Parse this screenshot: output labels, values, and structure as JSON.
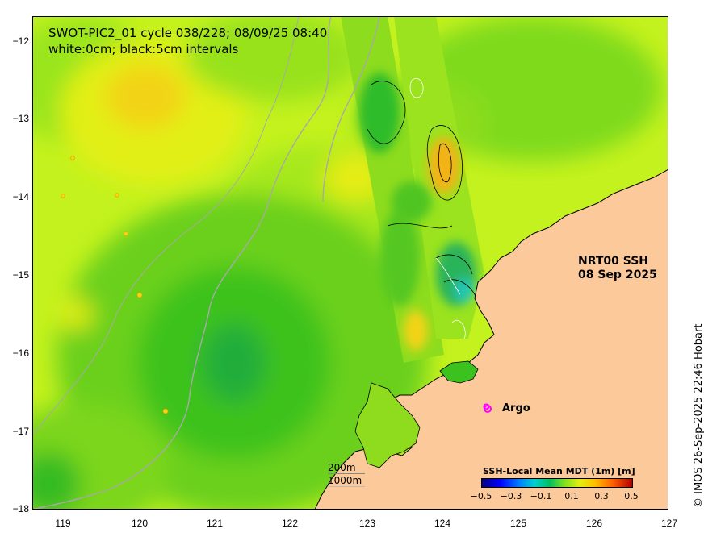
{
  "header": {
    "title_line1": "SWOT-PIC2_01 cycle 038/228; 08/09/25 08:40",
    "title_line2": "white:0cm; black:5cm intervals"
  },
  "product": {
    "line1": "NRT00 SSH",
    "line2": "08 Sep 2025"
  },
  "credit": "© IMOS 26-Sep-2025 22:46 Hobart",
  "axes": {
    "latitude_ticks": [
      "−12",
      "−13",
      "−14",
      "−15",
      "−16",
      "−17",
      "−18"
    ],
    "longitude_ticks": [
      "119",
      "120",
      "121",
      "122",
      "123",
      "124",
      "125",
      "126",
      "127"
    ]
  },
  "legend": {
    "argo_marker": "o",
    "argo_label": "Argo",
    "depth_200": "200m",
    "depth_1000": "1000m",
    "colorbar_title": "SSH-Local Mean MDT (1m) [m]",
    "colorbar_ticks": [
      "−0.5",
      "−0.3",
      "−0.1",
      "0.1",
      "0.3",
      "0.5"
    ]
  },
  "colors": {
    "land": "#fcc99a",
    "ocean_base": "#c4f21e",
    "argo": "#ff00ff",
    "isobath": "#a8a8a8"
  }
}
